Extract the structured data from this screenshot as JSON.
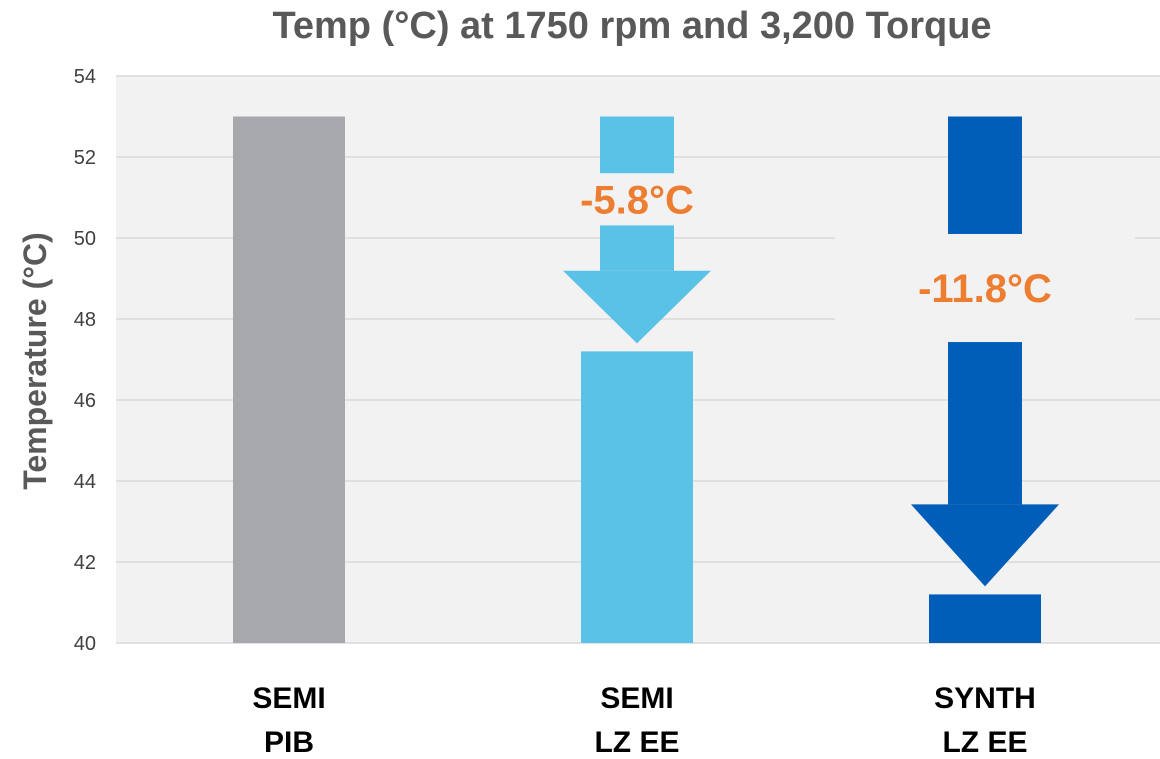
{
  "chart_data": {
    "type": "bar",
    "title": "Temp (°C) at 1750 rpm and 3,200 Torque",
    "xlabel": "",
    "ylabel": "Temperature (°C)",
    "ylim": [
      40,
      54
    ],
    "yticks": [
      "40",
      "42",
      "44",
      "46",
      "48",
      "50",
      "52",
      "54"
    ],
    "grid": true,
    "categories": [
      {
        "line1": "SEMI",
        "line2": "PIB"
      },
      {
        "line1": "SEMI",
        "line2": "LZ EE"
      },
      {
        "line1": "SYNTH",
        "line2": "LZ EE"
      }
    ],
    "values": [
      53.0,
      47.2,
      41.2
    ],
    "bar_colors": [
      "#a6a8ab",
      "#5bc2e7",
      "#005eb8"
    ],
    "annotations": [
      {
        "category_index": 1,
        "text": "-5.8°C",
        "from": 53.0,
        "to": 47.2
      },
      {
        "category_index": 2,
        "text": "-11.8°C",
        "from": 53.0,
        "to": 41.2
      }
    ],
    "annotation_color": "#ed7d31"
  }
}
